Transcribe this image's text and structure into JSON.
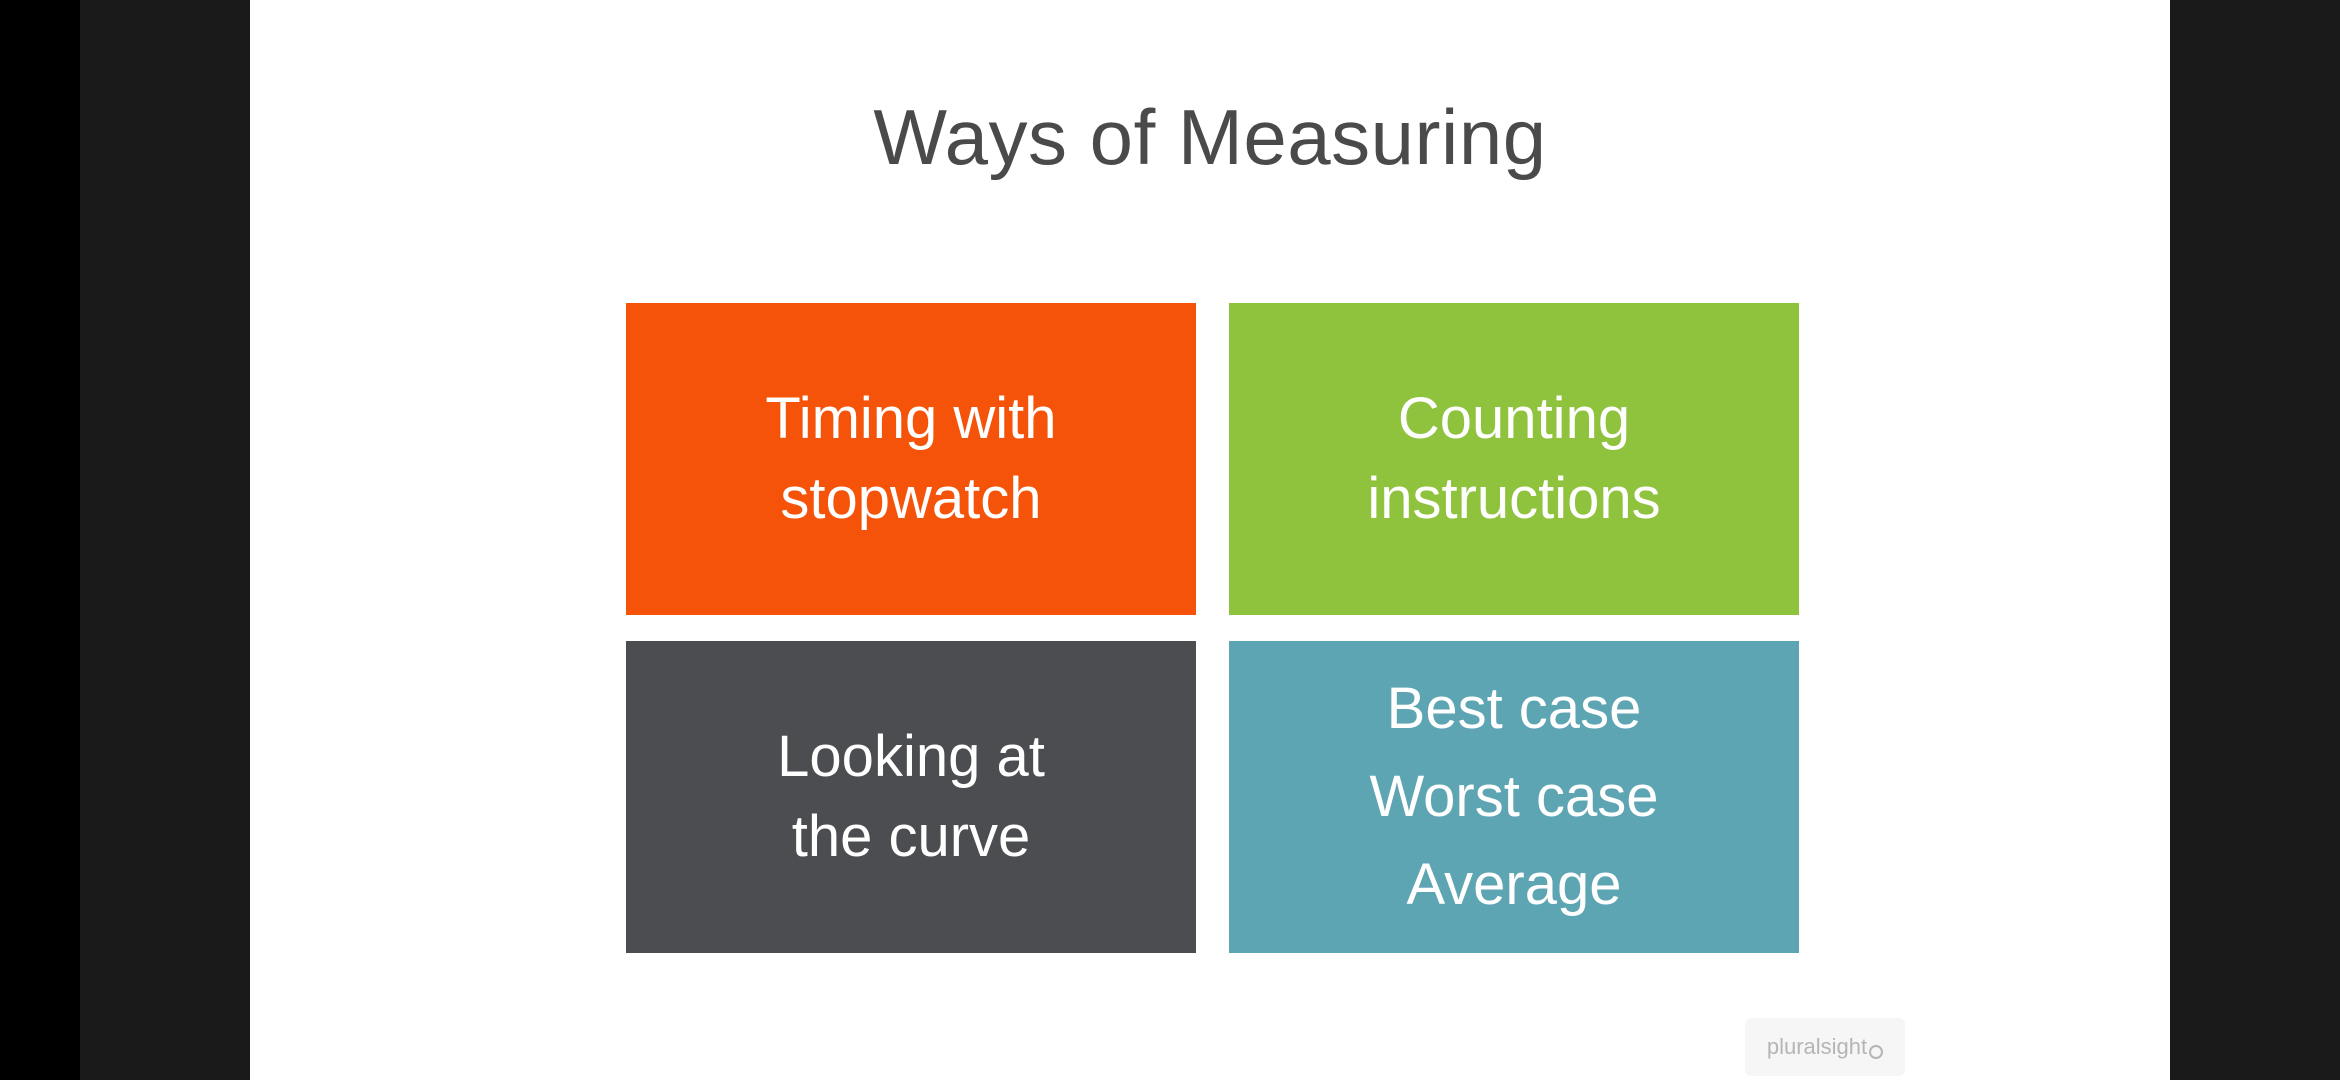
{
  "slide": {
    "title": "Ways of Measuring",
    "tiles": [
      {
        "text": "Timing with\nstopwatch",
        "color": "#f45309"
      },
      {
        "text": "Counting\ninstructions",
        "color": "#8fc33d"
      },
      {
        "text": "Looking at\nthe curve",
        "color": "#4b4d51"
      },
      {
        "lines": [
          "Best case",
          "Worst case",
          "Average"
        ],
        "color": "#5da5b2"
      }
    ]
  },
  "watermark": {
    "text": "pluralsight"
  }
}
